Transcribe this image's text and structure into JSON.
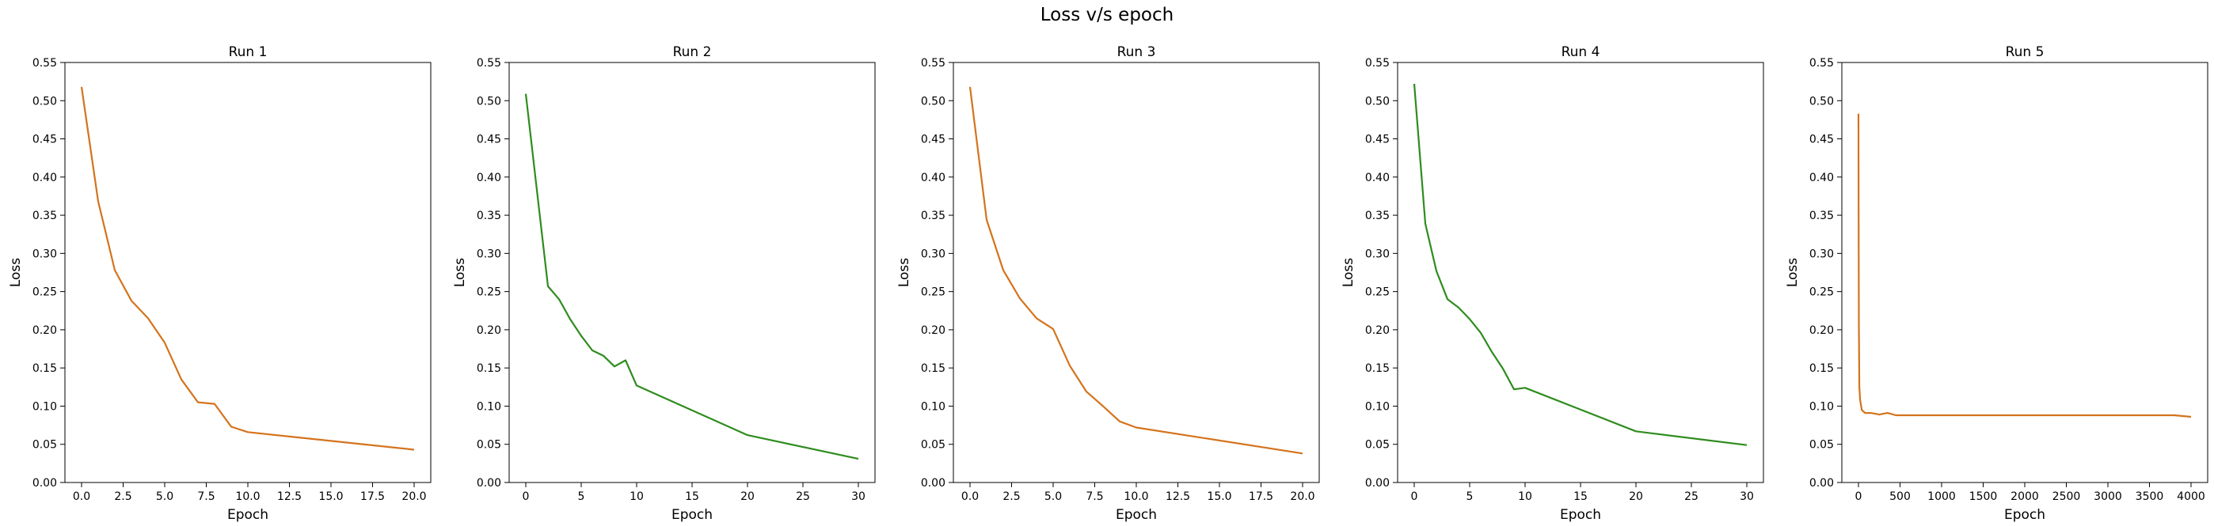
{
  "figure": {
    "title": "Loss v/s epoch"
  },
  "colors": {
    "orange": "#d4731d",
    "green": "#2e8c1e"
  },
  "chart_data": [
    {
      "type": "line",
      "title": "Run 1",
      "xlabel": "Epoch",
      "ylabel": "Loss",
      "xlim": [
        -1,
        21
      ],
      "ylim": [
        0.0,
        0.55
      ],
      "xticks": [
        0.0,
        2.5,
        5.0,
        7.5,
        10.0,
        12.5,
        15.0,
        17.5,
        20.0
      ],
      "xtick_labels": [
        "0.0",
        "2.5",
        "5.0",
        "7.5",
        "10.0",
        "12.5",
        "15.0",
        "17.5",
        "20.0"
      ],
      "yticks": [
        0.0,
        0.05,
        0.1,
        0.15,
        0.2,
        0.25,
        0.3,
        0.35,
        0.4,
        0.45,
        0.5,
        0.55
      ],
      "ytick_labels": [
        "0.00",
        "0.05",
        "0.10",
        "0.15",
        "0.20",
        "0.25",
        "0.30",
        "0.35",
        "0.40",
        "0.45",
        "0.50",
        "0.55"
      ],
      "series": [
        {
          "color": "#d4731d",
          "x": [
            0,
            1,
            2,
            3,
            4,
            5,
            6,
            7,
            8,
            9,
            10,
            20
          ],
          "y": [
            0.518,
            0.368,
            0.278,
            0.238,
            0.215,
            0.183,
            0.135,
            0.105,
            0.103,
            0.073,
            0.066,
            0.043
          ]
        }
      ]
    },
    {
      "type": "line",
      "title": "Run 2",
      "xlabel": "Epoch",
      "ylabel": "Loss",
      "xlim": [
        -1.5,
        31.5
      ],
      "ylim": [
        0.0,
        0.55
      ],
      "xticks": [
        0,
        5,
        10,
        15,
        20,
        25,
        30
      ],
      "xtick_labels": [
        "0",
        "5",
        "10",
        "15",
        "20",
        "25",
        "30"
      ],
      "yticks": [
        0.0,
        0.05,
        0.1,
        0.15,
        0.2,
        0.25,
        0.3,
        0.35,
        0.4,
        0.45,
        0.5,
        0.55
      ],
      "ytick_labels": [
        "0.00",
        "0.05",
        "0.10",
        "0.15",
        "0.20",
        "0.25",
        "0.30",
        "0.35",
        "0.40",
        "0.45",
        "0.50",
        "0.55"
      ],
      "series": [
        {
          "color": "#2e8c1e",
          "x": [
            0,
            2,
            3,
            4,
            5,
            6,
            7,
            8,
            9,
            10,
            20,
            30
          ],
          "y": [
            0.509,
            0.257,
            0.24,
            0.214,
            0.192,
            0.173,
            0.166,
            0.152,
            0.16,
            0.127,
            0.062,
            0.031
          ]
        }
      ]
    },
    {
      "type": "line",
      "title": "Run 3",
      "xlabel": "Epoch",
      "ylabel": "Loss",
      "xlim": [
        -1,
        21
      ],
      "ylim": [
        0.0,
        0.55
      ],
      "xticks": [
        0.0,
        2.5,
        5.0,
        7.5,
        10.0,
        12.5,
        15.0,
        17.5,
        20.0
      ],
      "xtick_labels": [
        "0.0",
        "2.5",
        "5.0",
        "7.5",
        "10.0",
        "12.5",
        "15.0",
        "17.5",
        "20.0"
      ],
      "yticks": [
        0.0,
        0.05,
        0.1,
        0.15,
        0.2,
        0.25,
        0.3,
        0.35,
        0.4,
        0.45,
        0.5,
        0.55
      ],
      "ytick_labels": [
        "0.00",
        "0.05",
        "0.10",
        "0.15",
        "0.20",
        "0.25",
        "0.30",
        "0.35",
        "0.40",
        "0.45",
        "0.50",
        "0.55"
      ],
      "series": [
        {
          "color": "#d4731d",
          "x": [
            0,
            1,
            2,
            3,
            4,
            5,
            6,
            7,
            8,
            9,
            10,
            20
          ],
          "y": [
            0.518,
            0.344,
            0.278,
            0.241,
            0.215,
            0.201,
            0.153,
            0.119,
            0.1,
            0.08,
            0.072,
            0.038
          ]
        }
      ]
    },
    {
      "type": "line",
      "title": "Run 4",
      "xlabel": "Epoch",
      "ylabel": "Loss",
      "xlim": [
        -1.5,
        31.5
      ],
      "ylim": [
        0.0,
        0.55
      ],
      "xticks": [
        0,
        5,
        10,
        15,
        20,
        25,
        30
      ],
      "xtick_labels": [
        "0",
        "5",
        "10",
        "15",
        "20",
        "25",
        "30"
      ],
      "yticks": [
        0.0,
        0.05,
        0.1,
        0.15,
        0.2,
        0.25,
        0.3,
        0.35,
        0.4,
        0.45,
        0.5,
        0.55
      ],
      "ytick_labels": [
        "0.00",
        "0.05",
        "0.10",
        "0.15",
        "0.20",
        "0.25",
        "0.30",
        "0.35",
        "0.40",
        "0.45",
        "0.50",
        "0.55"
      ],
      "series": [
        {
          "color": "#2e8c1e",
          "x": [
            0,
            1,
            2,
            3,
            4,
            5,
            6,
            7,
            8,
            9,
            10,
            20,
            30
          ],
          "y": [
            0.522,
            0.339,
            0.277,
            0.24,
            0.229,
            0.214,
            0.196,
            0.171,
            0.149,
            0.122,
            0.124,
            0.067,
            0.049
          ]
        }
      ]
    },
    {
      "type": "line",
      "title": "Run 5",
      "xlabel": "Epoch",
      "ylabel": "Loss",
      "xlim": [
        -200,
        4200
      ],
      "ylim": [
        0.0,
        0.55
      ],
      "xticks": [
        0,
        500,
        1000,
        1500,
        2000,
        2500,
        3000,
        3500,
        4000
      ],
      "xtick_labels": [
        "0",
        "500",
        "1000",
        "1500",
        "2000",
        "2500",
        "3000",
        "3500",
        "4000"
      ],
      "yticks": [
        0.0,
        0.05,
        0.1,
        0.15,
        0.2,
        0.25,
        0.3,
        0.35,
        0.4,
        0.45,
        0.5,
        0.55
      ],
      "ytick_labels": [
        "0.00",
        "0.05",
        "0.10",
        "0.15",
        "0.20",
        "0.25",
        "0.30",
        "0.35",
        "0.40",
        "0.45",
        "0.50",
        "0.55"
      ],
      "series": [
        {
          "color": "#d4731d",
          "x": [
            0,
            2,
            5,
            10,
            20,
            40,
            80,
            150,
            250,
            350,
            450,
            500,
            1000,
            2000,
            3000,
            3800,
            4000
          ],
          "y": [
            0.483,
            0.35,
            0.21,
            0.125,
            0.108,
            0.095,
            0.091,
            0.091,
            0.089,
            0.091,
            0.088,
            0.088,
            0.088,
            0.088,
            0.088,
            0.088,
            0.086
          ]
        }
      ]
    }
  ]
}
